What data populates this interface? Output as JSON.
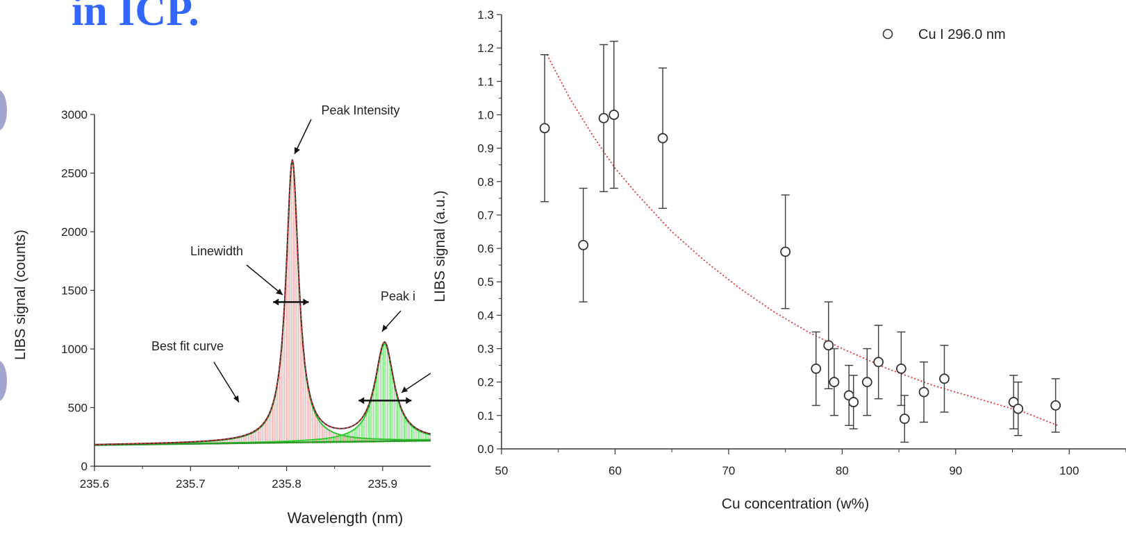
{
  "slide": {
    "title": "in ICP."
  },
  "chart_data": [
    {
      "type": "line",
      "xlabel": "Wavelength (nm)",
      "ylabel": "LIBS signal (counts)",
      "xlim": [
        235.6,
        235.95
      ],
      "ylim": [
        0,
        3000
      ],
      "xticks": [
        235.6,
        235.7,
        235.8,
        235.9
      ],
      "yticks": [
        0,
        500,
        1000,
        1500,
        2000,
        2500,
        3000
      ],
      "xtick_labels": [
        "235.6",
        "235.7",
        "235.8",
        "235.9"
      ],
      "ytick_labels": [
        "0",
        "500",
        "1000",
        "1500",
        "2000",
        "2500",
        "3000"
      ],
      "annotations": [
        {
          "id": "peak",
          "text": "Peak Intensity"
        },
        {
          "id": "linewidth",
          "text": "Linewidth"
        },
        {
          "id": "bestfit",
          "text": "Best fit curve"
        },
        {
          "id": "peak2",
          "text": "Peak i"
        }
      ],
      "peaks": [
        {
          "center": 235.806,
          "height": 2400,
          "width": 0.016
        },
        {
          "center": 235.902,
          "height": 830,
          "width": 0.024
        }
      ],
      "baseline": {
        "start": 180,
        "slope_per_nm": 110
      },
      "linewidth_markers": [
        {
          "x0": 235.786,
          "x1": 235.823,
          "y": 1400
        },
        {
          "x0": 235.875,
          "x1": 235.93,
          "y": 560
        }
      ],
      "grid": false,
      "colors": {
        "peak1": "#f28e8e",
        "peak2": "#4ee64e",
        "fit": "#e03030",
        "data": "#333333"
      }
    },
    {
      "type": "scatter",
      "xlabel": "Cu concentration (w%)",
      "ylabel": "LIBS signal (a.u.)",
      "xlim": [
        50,
        105
      ],
      "ylim": [
        0,
        1.3
      ],
      "xticks": [
        50,
        60,
        70,
        80,
        90,
        100
      ],
      "yticks": [
        0.0,
        0.1,
        0.2,
        0.3,
        0.4,
        0.5,
        0.6,
        0.7,
        0.8,
        0.9,
        1.0,
        1.1,
        1.2,
        1.3
      ],
      "xtick_labels": [
        "50",
        "60",
        "70",
        "80",
        "90",
        "100"
      ],
      "ytick_labels": [
        "0.0",
        "0.1",
        "0.2",
        "0.3",
        "0.4",
        "0.5",
        "0.6",
        "0.7",
        "0.8",
        "0.9",
        "1.0",
        "1.1",
        "1.2",
        "1.3"
      ],
      "legend": {
        "position": "top-right",
        "entries": [
          "Cu I 296.0 nm"
        ]
      },
      "series": [
        {
          "name": "Cu I 296.0 nm",
          "points": [
            {
              "x": 53.8,
              "y": 0.96,
              "err": 0.22
            },
            {
              "x": 57.2,
              "y": 0.61,
              "err": 0.17
            },
            {
              "x": 59.0,
              "y": 0.99,
              "err": 0.22
            },
            {
              "x": 59.9,
              "y": 1.0,
              "err": 0.22
            },
            {
              "x": 64.2,
              "y": 0.93,
              "err": 0.21
            },
            {
              "x": 75.0,
              "y": 0.59,
              "err": 0.17
            },
            {
              "x": 77.7,
              "y": 0.24,
              "err": 0.11
            },
            {
              "x": 78.8,
              "y": 0.31,
              "err": 0.13
            },
            {
              "x": 79.3,
              "y": 0.2,
              "err": 0.1
            },
            {
              "x": 80.6,
              "y": 0.16,
              "err": 0.09
            },
            {
              "x": 81.0,
              "y": 0.14,
              "err": 0.08
            },
            {
              "x": 82.2,
              "y": 0.2,
              "err": 0.1
            },
            {
              "x": 83.2,
              "y": 0.26,
              "err": 0.11
            },
            {
              "x": 85.2,
              "y": 0.24,
              "err": 0.11
            },
            {
              "x": 85.5,
              "y": 0.09,
              "err": 0.07
            },
            {
              "x": 87.2,
              "y": 0.17,
              "err": 0.09
            },
            {
              "x": 89.0,
              "y": 0.21,
              "err": 0.1
            },
            {
              "x": 95.1,
              "y": 0.14,
              "err": 0.08
            },
            {
              "x": 95.5,
              "y": 0.12,
              "err": 0.08
            },
            {
              "x": 98.8,
              "y": 0.13,
              "err": 0.08
            }
          ]
        }
      ],
      "fit_curve": {
        "x": [
          54,
          56,
          58,
          60,
          62,
          65,
          68,
          71,
          74,
          77,
          80,
          84,
          88,
          92,
          96,
          99
        ],
        "y": [
          1.18,
          1.05,
          0.94,
          0.84,
          0.76,
          0.65,
          0.56,
          0.48,
          0.41,
          0.35,
          0.3,
          0.24,
          0.19,
          0.15,
          0.11,
          0.07
        ]
      },
      "grid": false,
      "colors": {
        "points": "#333333",
        "fit": "#e03030"
      }
    }
  ]
}
